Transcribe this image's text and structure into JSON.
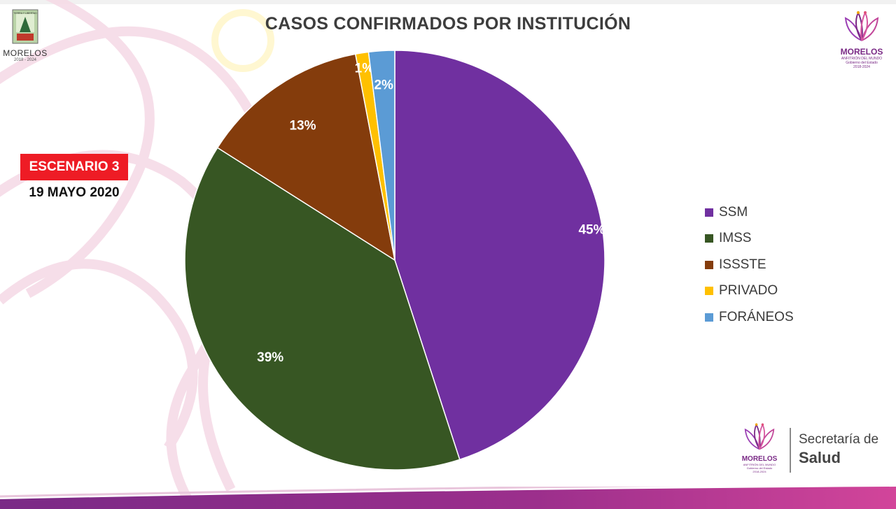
{
  "header": {
    "title": "CASOS CONFIRMADOS POR INSTITUCIÓN"
  },
  "badge": {
    "label": "ESCENARIO 3",
    "color": "#ee1c25"
  },
  "date_label": "19 MAYO 2020",
  "logos": {
    "left": {
      "name": "MORELOS",
      "years": "2018 - 2024"
    },
    "right": {
      "name": "MORELOS",
      "tagline": "ANFITRIÓN DEL MUNDO",
      "sub": "Gobierno del Estado",
      "years": "2018-2024"
    },
    "bottom": {
      "name": "MORELOS",
      "tagline": "ANFITRIÓN DEL MUNDO",
      "sub": "Gobierno del Estado",
      "years": "2018-2024"
    },
    "secretaria": {
      "line1": "Secretaría de",
      "line2": "Salud"
    }
  },
  "chart_data": {
    "type": "pie",
    "title": "CASOS CONFIRMADOS POR INSTITUCIÓN",
    "start": "12 o'clock",
    "direction": "clockwise",
    "legend_position": "right",
    "slices": [
      {
        "label": "SSM",
        "value": 45,
        "display": "45%",
        "color": "#7030a0"
      },
      {
        "label": "IMSS",
        "value": 39,
        "display": "39%",
        "color": "#375623"
      },
      {
        "label": "ISSSTE",
        "value": 13,
        "display": "13%",
        "color": "#843c0c"
      },
      {
        "label": "PRIVADO",
        "value": 1,
        "display": "1%",
        "color": "#ffc000"
      },
      {
        "label": "FORÁNEOS",
        "value": 2,
        "display": "2%",
        "color": "#5b9bd5"
      }
    ]
  }
}
